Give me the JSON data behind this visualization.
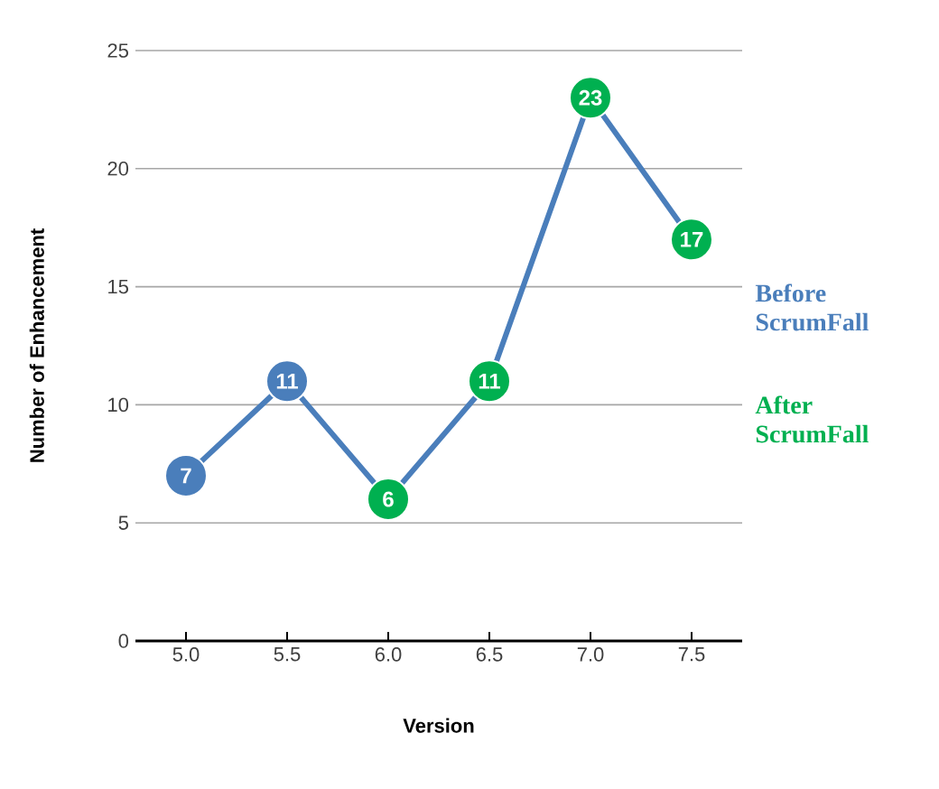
{
  "chart_data": {
    "type": "line",
    "xlabel": "Version",
    "ylabel": "Number of Enhancement",
    "categories": [
      "5.0",
      "5.5",
      "6.0",
      "6.5",
      "7.0",
      "7.5"
    ],
    "ylim": [
      0,
      25
    ],
    "yticks": [
      0,
      5,
      10,
      15,
      20,
      25
    ],
    "grid": "y",
    "legend": "right",
    "series": [
      {
        "type": "line",
        "color": "#4a7ebb",
        "marker": "none",
        "values": [
          7,
          11,
          6,
          11,
          23,
          17
        ]
      },
      {
        "type": "scatter",
        "name": "Before ScrumFall",
        "color": "#4a7ebb",
        "marker": "circle",
        "values": [
          7,
          11,
          null,
          null,
          null,
          null
        ],
        "value_labels": [
          "7",
          "11",
          null,
          null,
          null,
          null
        ]
      },
      {
        "type": "scatter",
        "name": "After ScrumFall",
        "color": "#00b050",
        "marker": "circle",
        "values": [
          null,
          null,
          6,
          11,
          23,
          17
        ],
        "value_labels": [
          null,
          null,
          "6",
          "11",
          "23",
          "17"
        ]
      }
    ]
  }
}
